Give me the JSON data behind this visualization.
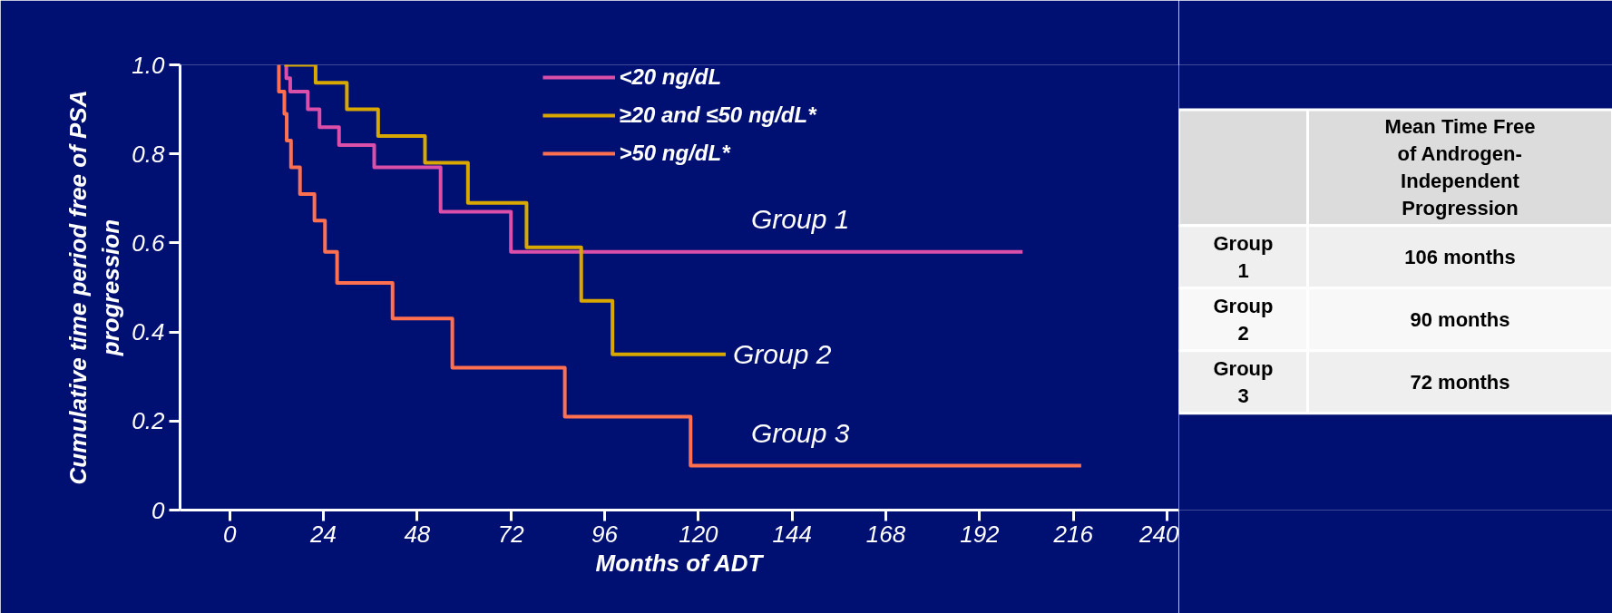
{
  "chart_data": {
    "type": "step",
    "xlabel": "Months of ADT",
    "ylabel": "Cumulative time period free of PSA progression",
    "xlim": [
      -12.7,
      243
    ],
    "ylim": [
      0,
      1
    ],
    "xticks": [
      0,
      24,
      48,
      72,
      96,
      120,
      144,
      168,
      192,
      216,
      240
    ],
    "yticks": [
      0,
      {
        "value": 0.2,
        "label": "0.2"
      },
      {
        "value": 0.4,
        "label": "0.4"
      },
      {
        "value": 0.6,
        "label": "0.6"
      },
      {
        "value": 0.8,
        "label": "0.8"
      },
      {
        "value": 1,
        "label": "1.0"
      }
    ],
    "grid": false,
    "legend": "top",
    "marker": "none",
    "line_style": "solid",
    "series": [
      {
        "name": "<20 ng/dL",
        "color": "#d94fa9",
        "x": [
          14,
          14.5,
          15.5,
          20,
          23,
          28,
          37,
          54,
          72,
          203
        ],
        "values": [
          1.0,
          0.97,
          0.94,
          0.9,
          0.86,
          0.82,
          0.77,
          0.67,
          0.58,
          0.58
        ]
      },
      {
        "name": "≥20 and ≤50 ng/dL*",
        "color": "#d9a800",
        "x": [
          14,
          22,
          30,
          38,
          50,
          61,
          76,
          90,
          98,
          127
        ],
        "values": [
          1.0,
          0.96,
          0.9,
          0.84,
          0.78,
          0.69,
          0.59,
          0.47,
          0.35,
          0.35
        ]
      },
      {
        "name": ">50 ng/dL*",
        "color": "#ff7050",
        "x": [
          12.4,
          12.6,
          14,
          14.6,
          15.7,
          18,
          21.7,
          24.4,
          27.5,
          41.7,
          57,
          85.8,
          118,
          218
        ],
        "values": [
          1.0,
          0.94,
          0.89,
          0.83,
          0.77,
          0.71,
          0.65,
          0.58,
          0.51,
          0.43,
          0.32,
          0.21,
          0.1,
          0.1
        ]
      }
    ],
    "annotations": [
      "Group 1",
      "Group 2",
      "Group 3",
      "Mean Time Free of Androgen-Independent Progression",
      "Group 1",
      "106 months",
      "Group 2",
      "90 months",
      "Group 3",
      "72 months"
    ]
  }
}
